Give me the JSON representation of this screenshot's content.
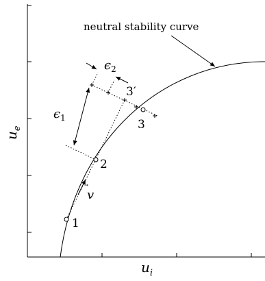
{
  "chart": {
    "annotation": "neutral stability curve",
    "xlabel": {
      "base": "u",
      "sub": "i"
    },
    "ylabel": {
      "base": "u",
      "sub": "e"
    },
    "points": [
      {
        "label": "1"
      },
      {
        "label": "2"
      },
      {
        "label": "3"
      },
      {
        "label": "3′"
      }
    ],
    "epsilon1": {
      "base": "ϵ",
      "sub": "1"
    },
    "epsilon2": {
      "base": "ϵ",
      "sub": "2"
    },
    "vector": {
      "label": "v",
      "arrow": "⃗"
    }
  }
}
